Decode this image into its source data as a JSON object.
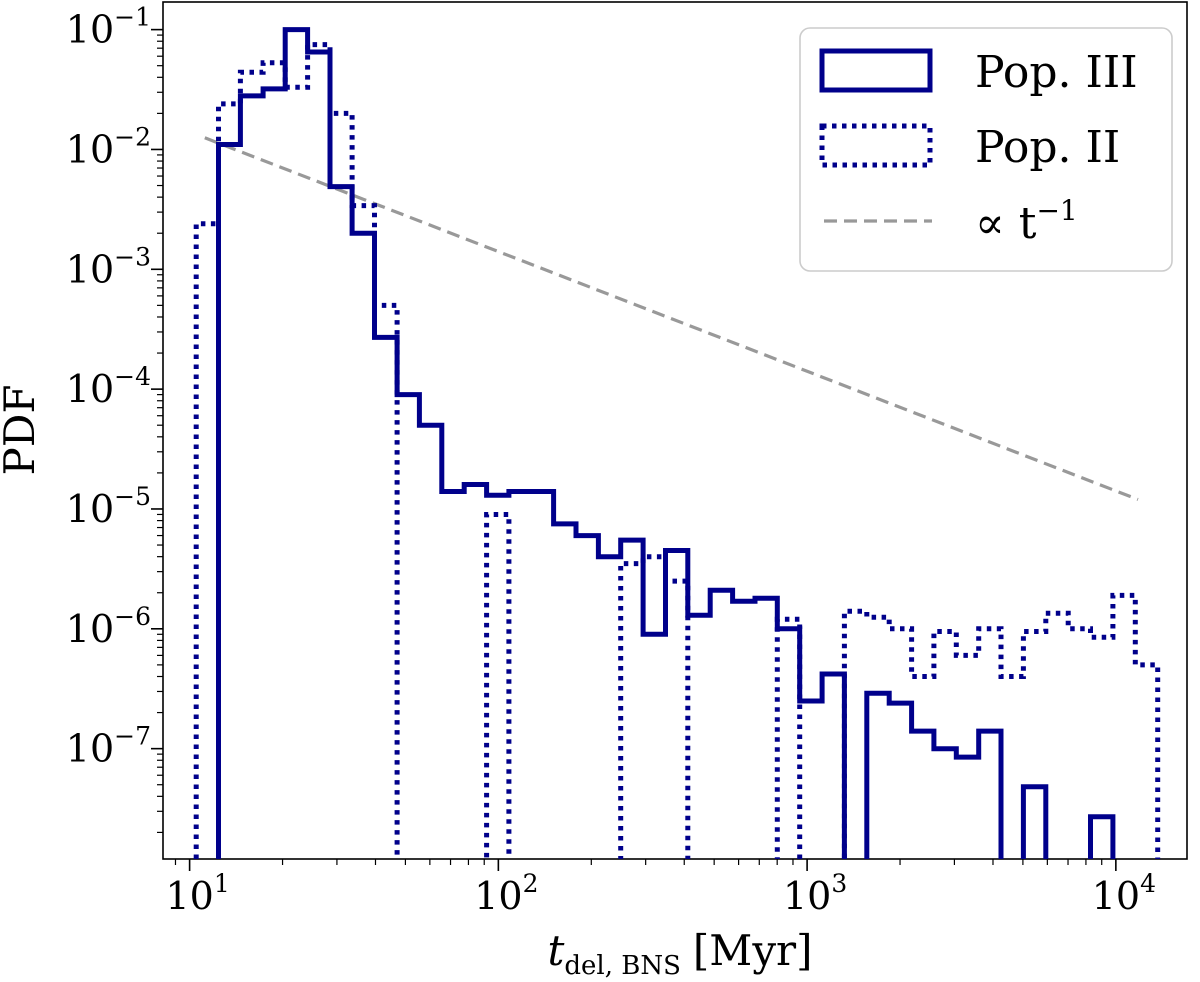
{
  "chart_data": {
    "type": "histogram-step",
    "xscale": "log",
    "yscale": "log",
    "xlabel": {
      "main": "t",
      "sub": "del, BNS",
      "unit": "[Myr]"
    },
    "ylabel": "PDF",
    "xlim": [
      8.2,
      17000
    ],
    "ylim": [
      1.2e-08,
      0.17
    ],
    "x_ticks": [
      {
        "value": 10,
        "base": "10",
        "exp": "1"
      },
      {
        "value": 100,
        "base": "10",
        "exp": "2"
      },
      {
        "value": 1000,
        "base": "10",
        "exp": "3"
      },
      {
        "value": 10000,
        "base": "10",
        "exp": "4"
      }
    ],
    "y_ticks": [
      {
        "value": 1e-07,
        "base": "10",
        "exp": "−7"
      },
      {
        "value": 1e-06,
        "base": "10",
        "exp": "−6"
      },
      {
        "value": 1e-05,
        "base": "10",
        "exp": "−5"
      },
      {
        "value": 0.0001,
        "base": "10",
        "exp": "−4"
      },
      {
        "value": 0.001,
        "base": "10",
        "exp": "−3"
      },
      {
        "value": 0.01,
        "base": "10",
        "exp": "−2"
      },
      {
        "value": 0.1,
        "base": "10",
        "exp": "−1"
      }
    ],
    "colors": {
      "series": "#00008b",
      "reference": "#999999",
      "axes": "#000000"
    },
    "series": [
      {
        "name": "Pop. III",
        "style": "solid",
        "edges": [
          12.4,
          14.6,
          17.3,
          20.4,
          24.1,
          28.5,
          33.6,
          39.7,
          47.0,
          55.5,
          65.6,
          77.5,
          91.6,
          108.2,
          127.8,
          151.0,
          178.4,
          210.8,
          249.1,
          294.3,
          347.8,
          410.9,
          485.5,
          573.7,
          677.8,
          800.9,
          946.3,
          1118.1,
          1321.1,
          1561.0,
          1844.4,
          2179.3,
          2575.0,
          3042.6,
          3595.0,
          4247.8,
          5019.1,
          5930.5,
          7007.3,
          8279.7,
          9783.1,
          11559.5,
          13658.5
        ],
        "values": [
          0.011,
          0.028,
          0.032,
          0.1,
          0.065,
          0.0049,
          0.002,
          0.00027,
          9e-05,
          5e-05,
          1.4e-05,
          1.6e-05,
          1.3e-05,
          1.4e-05,
          1.4e-05,
          7.5e-06,
          6e-06,
          4e-06,
          5.5e-06,
          9e-07,
          4.5e-06,
          1.3e-06,
          2.1e-06,
          1.7e-06,
          1.8e-06,
          1e-06,
          2.5e-07,
          4.2e-07,
          0,
          2.9e-07,
          2.4e-07,
          1.4e-07,
          1e-07,
          8.5e-08,
          1.4e-07,
          0,
          4.8e-08,
          0,
          0,
          2.7e-08,
          0,
          0
        ]
      },
      {
        "name": "Pop. II",
        "style": "dotted",
        "edges": [
          10.5,
          12.4,
          14.6,
          17.3,
          20.4,
          24.1,
          28.5,
          33.6,
          39.7,
          47.0,
          55.5,
          65.6,
          77.5,
          91.6,
          108.2,
          127.8,
          151.0,
          178.4,
          210.8,
          249.1,
          294.3,
          347.8,
          410.9,
          485.5,
          573.7,
          677.8,
          800.9,
          946.3,
          1118.1,
          1321.1,
          1561.0,
          1844.4,
          2179.3,
          2575.0,
          3042.6,
          3595.0,
          4247.8,
          5019.1,
          5930.5,
          7007.3,
          8279.7,
          9783.1,
          11559.5,
          13658.5
        ],
        "values": [
          0.0024,
          0.024,
          0.044,
          0.053,
          0.033,
          0.075,
          0.02,
          0.0034,
          0.0005,
          0,
          0,
          0,
          0,
          9e-06,
          0,
          0,
          0,
          0,
          0,
          3.5e-06,
          4e-06,
          2.5e-06,
          0,
          0,
          0,
          0,
          1.2e-06,
          0,
          0,
          1.4e-06,
          1.25e-06,
          1e-06,
          4e-07,
          9.5e-07,
          6e-07,
          1e-06,
          4e-07,
          9.5e-07,
          1.35e-06,
          1e-06,
          8.5e-07,
          1.9e-06,
          5e-07
        ]
      },
      {
        "name": "∝ t",
        "name_exp": "−1",
        "style": "dashed",
        "x": [
          11.2,
          11800
        ],
        "y": [
          0.0125,
          1.2e-05
        ]
      }
    ],
    "legend": {
      "position": "top-right",
      "entries": [
        {
          "label": "Pop. III"
        },
        {
          "label": "Pop. II"
        },
        {
          "label": "∝ t",
          "exp": "−1"
        }
      ]
    }
  }
}
